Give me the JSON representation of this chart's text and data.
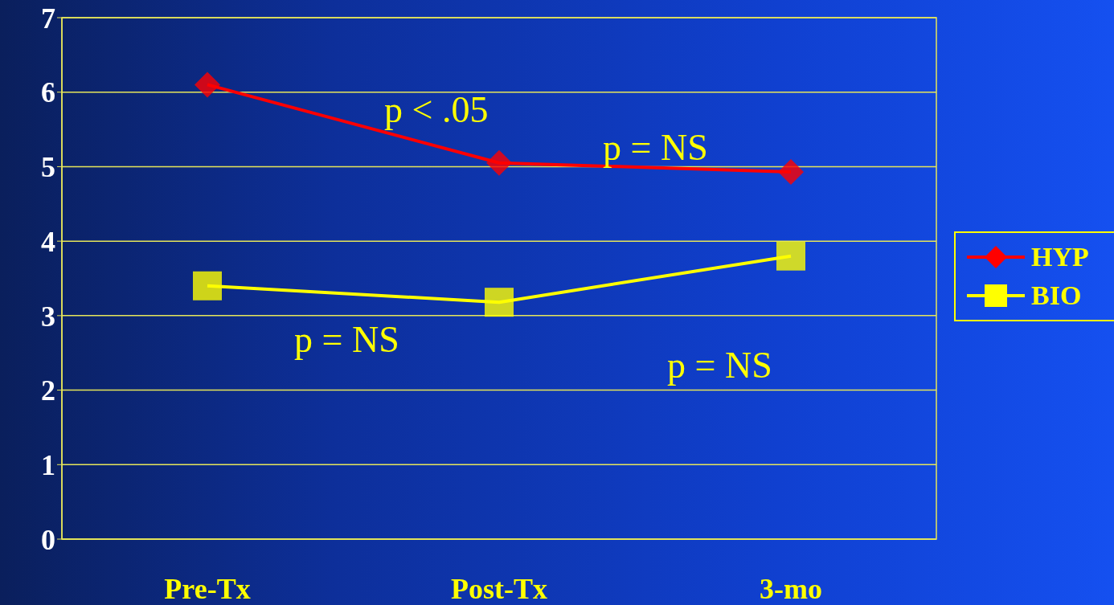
{
  "chart_data": {
    "type": "line",
    "categories": [
      "Pre-Tx",
      "Post-Tx",
      "3-mo"
    ],
    "series": [
      {
        "name": "HYP",
        "color": "#ff0000",
        "marker": "diamond",
        "values": [
          6.1,
          5.05,
          4.93
        ]
      },
      {
        "name": "BIO",
        "color": "#ffff00",
        "marker": "square",
        "values": [
          3.4,
          3.18,
          3.8
        ]
      }
    ],
    "ylim": [
      0,
      7
    ],
    "yticks": [
      0,
      1,
      2,
      3,
      4,
      5,
      6,
      7
    ],
    "grid": "y",
    "legend": "right",
    "line_style": "solid",
    "annotations": [
      "p < .05",
      "p = NS",
      "p = NS",
      "p = NS"
    ]
  }
}
